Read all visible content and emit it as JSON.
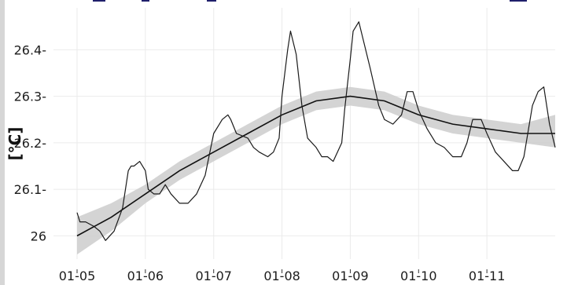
{
  "chart_data": {
    "type": "line",
    "title": "",
    "xlabel": "",
    "ylabel": "[°C]",
    "x_ticks": [
      "01-05",
      "01-06",
      "01-07",
      "01-08",
      "01-09",
      "01-10",
      "01-11"
    ],
    "y_ticks": [
      26,
      26.1,
      26.2,
      26.3,
      26.4
    ],
    "y_tick_labels": [
      "26",
      "26.1-",
      "26.2-",
      "26.3-",
      "26.4-"
    ],
    "xlim": [
      "01-05",
      "01-12"
    ],
    "ylim": [
      25.95,
      26.49
    ],
    "grid": true,
    "legend": "none",
    "series": [
      {
        "style": "raw",
        "color": "#1a1a1a",
        "points": [
          [
            "01-05 00:00",
            26.05
          ],
          [
            "01-05 01:00",
            26.03
          ],
          [
            "01-05 03:00",
            26.03
          ],
          [
            "01-05 06:00",
            26.02
          ],
          [
            "01-05 08:00",
            26.01
          ],
          [
            "01-05 10:00",
            25.99
          ],
          [
            "01-05 13:00",
            26.01
          ],
          [
            "01-05 16:00",
            26.06
          ],
          [
            "01-05 18:00",
            26.14
          ],
          [
            "01-05 19:00",
            26.15
          ],
          [
            "01-05 20:00",
            26.15
          ],
          [
            "01-05 22:00",
            26.16
          ],
          [
            "01-06 00:00",
            26.14
          ],
          [
            "01-06 01:00",
            26.1
          ],
          [
            "01-06 03:00",
            26.09
          ],
          [
            "01-06 05:00",
            26.09
          ],
          [
            "01-06 07:00",
            26.11
          ],
          [
            "01-06 09:00",
            26.09
          ],
          [
            "01-06 12:00",
            26.07
          ],
          [
            "01-06 15:00",
            26.07
          ],
          [
            "01-06 18:00",
            26.09
          ],
          [
            "01-06 21:00",
            26.13
          ],
          [
            "01-07 00:00",
            26.22
          ],
          [
            "01-07 02:00",
            26.24
          ],
          [
            "01-07 03:00",
            26.25
          ],
          [
            "01-07 05:00",
            26.26
          ],
          [
            "01-07 06:00",
            26.25
          ],
          [
            "01-07 08:00",
            26.22
          ],
          [
            "01-07 12:00",
            26.21
          ],
          [
            "01-07 14:00",
            26.19
          ],
          [
            "01-07 16:00",
            26.18
          ],
          [
            "01-07 19:00",
            26.17
          ],
          [
            "01-07 21:00",
            26.18
          ],
          [
            "01-07 23:00",
            26.21
          ],
          [
            "01-08 00:00",
            26.3
          ],
          [
            "01-08 02:00",
            26.4
          ],
          [
            "01-08 03:00",
            26.44
          ],
          [
            "01-08 05:00",
            26.39
          ],
          [
            "01-08 07:00",
            26.28
          ],
          [
            "01-08 09:00",
            26.21
          ],
          [
            "01-08 12:00",
            26.19
          ],
          [
            "01-08 14:00",
            26.17
          ],
          [
            "01-08 16:00",
            26.17
          ],
          [
            "01-08 18:00",
            26.16
          ],
          [
            "01-08 21:00",
            26.2
          ],
          [
            "01-08 22:00",
            26.27
          ],
          [
            "01-09 00:00",
            26.38
          ],
          [
            "01-09 01:00",
            26.44
          ],
          [
            "01-09 03:00",
            26.46
          ],
          [
            "01-09 05:00",
            26.41
          ],
          [
            "01-09 07:00",
            26.36
          ],
          [
            "01-09 10:00",
            26.28
          ],
          [
            "01-09 12:00",
            26.25
          ],
          [
            "01-09 15:00",
            26.24
          ],
          [
            "01-09 18:00",
            26.26
          ],
          [
            "01-09 20:00",
            26.31
          ],
          [
            "01-09 22:00",
            26.31
          ],
          [
            "01-10 00:00",
            26.27
          ],
          [
            "01-10 03:00",
            26.23
          ],
          [
            "01-10 06:00",
            26.2
          ],
          [
            "01-10 09:00",
            26.19
          ],
          [
            "01-10 12:00",
            26.17
          ],
          [
            "01-10 15:00",
            26.17
          ],
          [
            "01-10 17:00",
            26.2
          ],
          [
            "01-10 19:00",
            26.25
          ],
          [
            "01-10 22:00",
            26.25
          ],
          [
            "01-11 00:00",
            26.22
          ],
          [
            "01-11 03:00",
            26.18
          ],
          [
            "01-11 06:00",
            26.16
          ],
          [
            "01-11 09:00",
            26.14
          ],
          [
            "01-11 11:00",
            26.14
          ],
          [
            "01-11 13:00",
            26.17
          ],
          [
            "01-11 16:00",
            26.28
          ],
          [
            "01-11 18:00",
            26.31
          ],
          [
            "01-11 20:00",
            26.32
          ],
          [
            "01-11 22:00",
            26.24
          ],
          [
            "01-12 00:00",
            26.19
          ]
        ]
      },
      {
        "style": "smooth",
        "color": "#111111",
        "band_color": "#cccccc",
        "points": [
          [
            "01-05 00:00",
            26.0,
            25.96,
            26.04
          ],
          [
            "01-05 12:00",
            26.04,
            26.01,
            26.07
          ],
          [
            "01-06 00:00",
            26.09,
            26.07,
            26.11
          ],
          [
            "01-06 12:00",
            26.14,
            26.12,
            26.16
          ],
          [
            "01-07 00:00",
            26.18,
            26.16,
            26.2
          ],
          [
            "01-07 12:00",
            26.22,
            26.2,
            26.24
          ],
          [
            "01-08 00:00",
            26.26,
            26.24,
            26.28
          ],
          [
            "01-08 12:00",
            26.29,
            26.27,
            26.31
          ],
          [
            "01-09 00:00",
            26.3,
            26.28,
            26.32
          ],
          [
            "01-09 12:00",
            26.29,
            26.27,
            26.31
          ],
          [
            "01-10 00:00",
            26.26,
            26.24,
            26.28
          ],
          [
            "01-10 12:00",
            26.24,
            26.22,
            26.26
          ],
          [
            "01-11 00:00",
            26.23,
            26.21,
            26.25
          ],
          [
            "01-11 12:00",
            26.22,
            26.2,
            26.24
          ],
          [
            "01-12 00:00",
            26.22,
            26.19,
            26.26
          ]
        ]
      }
    ]
  }
}
